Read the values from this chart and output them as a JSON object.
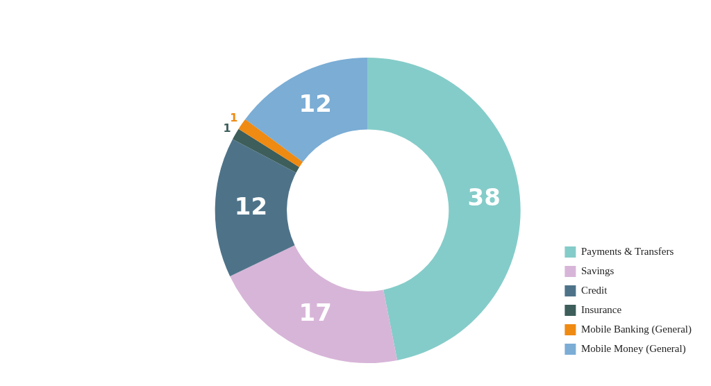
{
  "chart_data": {
    "type": "donut",
    "categories": [
      "Payments & Transfers",
      "Savings",
      "Credit",
      "Insurance",
      "Mobile Banking (General)",
      "Mobile Money (General)"
    ],
    "values": [
      38,
      17,
      12,
      1,
      1,
      12
    ],
    "colors": [
      "#84ccc9",
      "#d7b5d8",
      "#4e7389",
      "#3d5e5a",
      "#ef8a13",
      "#7badd5"
    ],
    "data_labels": true,
    "legend": "bottom right"
  }
}
